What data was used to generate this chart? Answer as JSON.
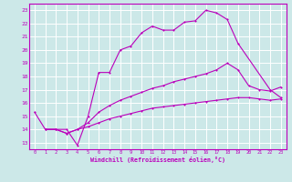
{
  "xlabel": "Windchill (Refroidissement éolien,°C)",
  "bg_color": "#cce8e8",
  "line_color": "#bb00bb",
  "grid_color": "#ffffff",
  "ylim": [
    12.5,
    23.5
  ],
  "xlim": [
    -0.5,
    23.5
  ],
  "yticks": [
    13,
    14,
    15,
    16,
    17,
    18,
    19,
    20,
    21,
    22,
    23
  ],
  "xticks": [
    0,
    1,
    2,
    3,
    4,
    5,
    6,
    7,
    8,
    9,
    10,
    11,
    12,
    13,
    14,
    15,
    16,
    17,
    18,
    19,
    20,
    21,
    22,
    23
  ],
  "line1_x": [
    0,
    1,
    2,
    3,
    4,
    5,
    6,
    7,
    8,
    9,
    10,
    11,
    12,
    13,
    14,
    15,
    16,
    17,
    18,
    19,
    22,
    23
  ],
  "line1_y": [
    15.3,
    14.0,
    14.0,
    14.0,
    12.8,
    15.0,
    18.3,
    18.3,
    20.0,
    20.3,
    21.3,
    21.8,
    21.5,
    21.5,
    22.1,
    22.2,
    23.0,
    22.8,
    22.3,
    20.5,
    17.0,
    16.4
  ],
  "line2_x": [
    1,
    2,
    3,
    4,
    5,
    6,
    7,
    8,
    9,
    10,
    11,
    12,
    13,
    14,
    15,
    16,
    17,
    18,
    19,
    20,
    21,
    22,
    23
  ],
  "line2_y": [
    14.0,
    14.0,
    13.7,
    14.0,
    14.5,
    15.3,
    15.8,
    16.2,
    16.5,
    16.8,
    17.1,
    17.3,
    17.6,
    17.8,
    18.0,
    18.2,
    18.5,
    19.0,
    18.5,
    17.3,
    17.0,
    16.9,
    17.2
  ],
  "line3_x": [
    1,
    2,
    3,
    4,
    5,
    6,
    7,
    8,
    9,
    10,
    11,
    12,
    13,
    14,
    15,
    16,
    17,
    18,
    19,
    20,
    21,
    22,
    23
  ],
  "line3_y": [
    14.0,
    14.0,
    13.7,
    14.0,
    14.2,
    14.5,
    14.8,
    15.0,
    15.2,
    15.4,
    15.6,
    15.7,
    15.8,
    15.9,
    16.0,
    16.1,
    16.2,
    16.3,
    16.4,
    16.4,
    16.3,
    16.2,
    16.3
  ],
  "lw": 0.8,
  "ms": 2.0
}
